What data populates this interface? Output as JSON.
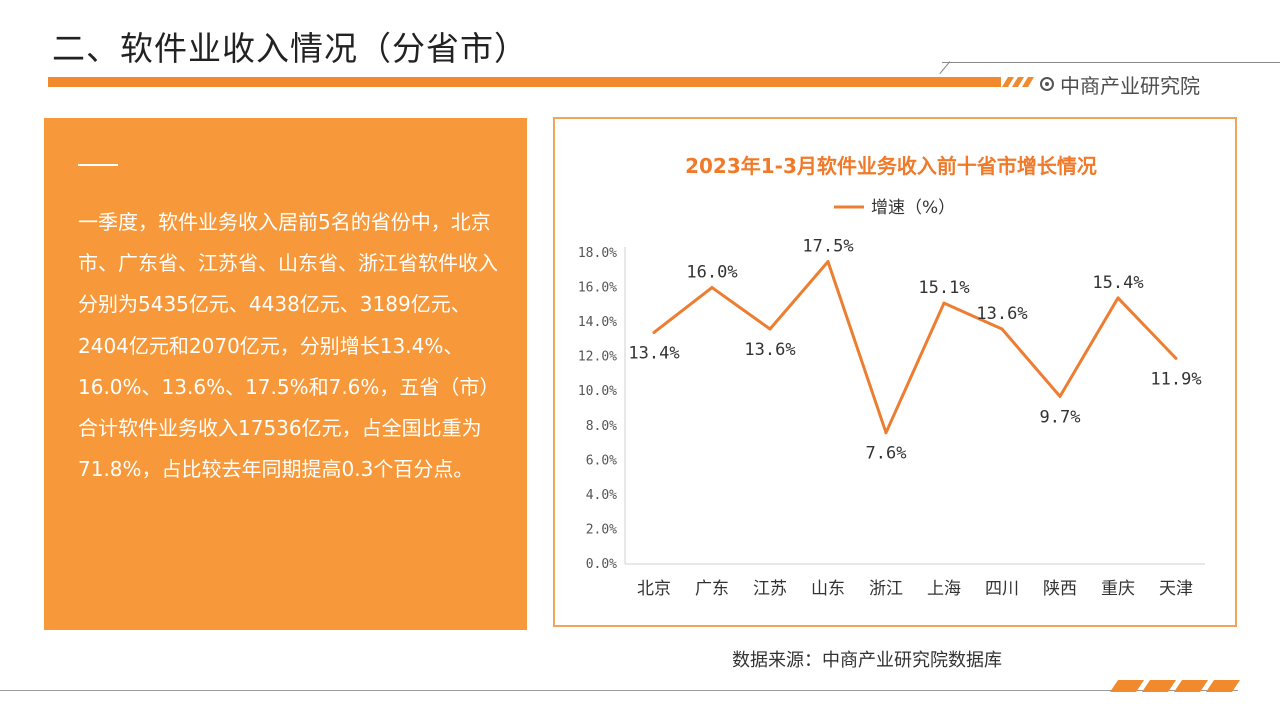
{
  "header": {
    "title": "二、软件业收入情况（分省市）",
    "brand": "中商产业研究院"
  },
  "panel": {
    "text": "一季度，软件业务收入居前5名的省份中，北京市、广东省、江苏省、山东省、浙江省软件收入分别为5435亿元、4438亿元、3189亿元、2404亿元和2070亿元，分别增长13.4%、16.0%、13.6%、17.5%和7.6%，五省（市）合计软件业务收入17536亿元，占全国比重为71.8%，占比较去年同期提高0.3个百分点。"
  },
  "colors": {
    "accent": "#f08a2c",
    "panel": "#f7993a",
    "line": "#ed7d31"
  },
  "chart_data": {
    "type": "line",
    "title": "2023年1-3月软件业务收入前十省市增长情况",
    "categories": [
      "北京",
      "广东",
      "江苏",
      "山东",
      "浙江",
      "上海",
      "四川",
      "陕西",
      "重庆",
      "天津"
    ],
    "series": [
      {
        "name": "增速（%）",
        "values": [
          13.4,
          16.0,
          13.6,
          17.5,
          7.6,
          15.1,
          13.6,
          9.7,
          15.4,
          11.9
        ]
      }
    ],
    "point_labels": [
      "13.4%",
      "16.0%",
      "13.6%",
      "17.5%",
      "7.6%",
      "15.1%",
      "13.6%",
      "9.7%",
      "15.4%",
      "11.9%"
    ],
    "label_positions": [
      "below",
      "above",
      "below",
      "above",
      "below",
      "above",
      "above",
      "below",
      "above",
      "below"
    ],
    "ylim": [
      0,
      18
    ],
    "yticks": [
      "0.0%",
      "2.0%",
      "4.0%",
      "6.0%",
      "8.0%",
      "10.0%",
      "12.0%",
      "14.0%",
      "16.0%",
      "18.0%"
    ],
    "legend_position": "top-center",
    "grid": false
  },
  "footer": {
    "source": "数据来源：中商产业研究院数据库"
  }
}
